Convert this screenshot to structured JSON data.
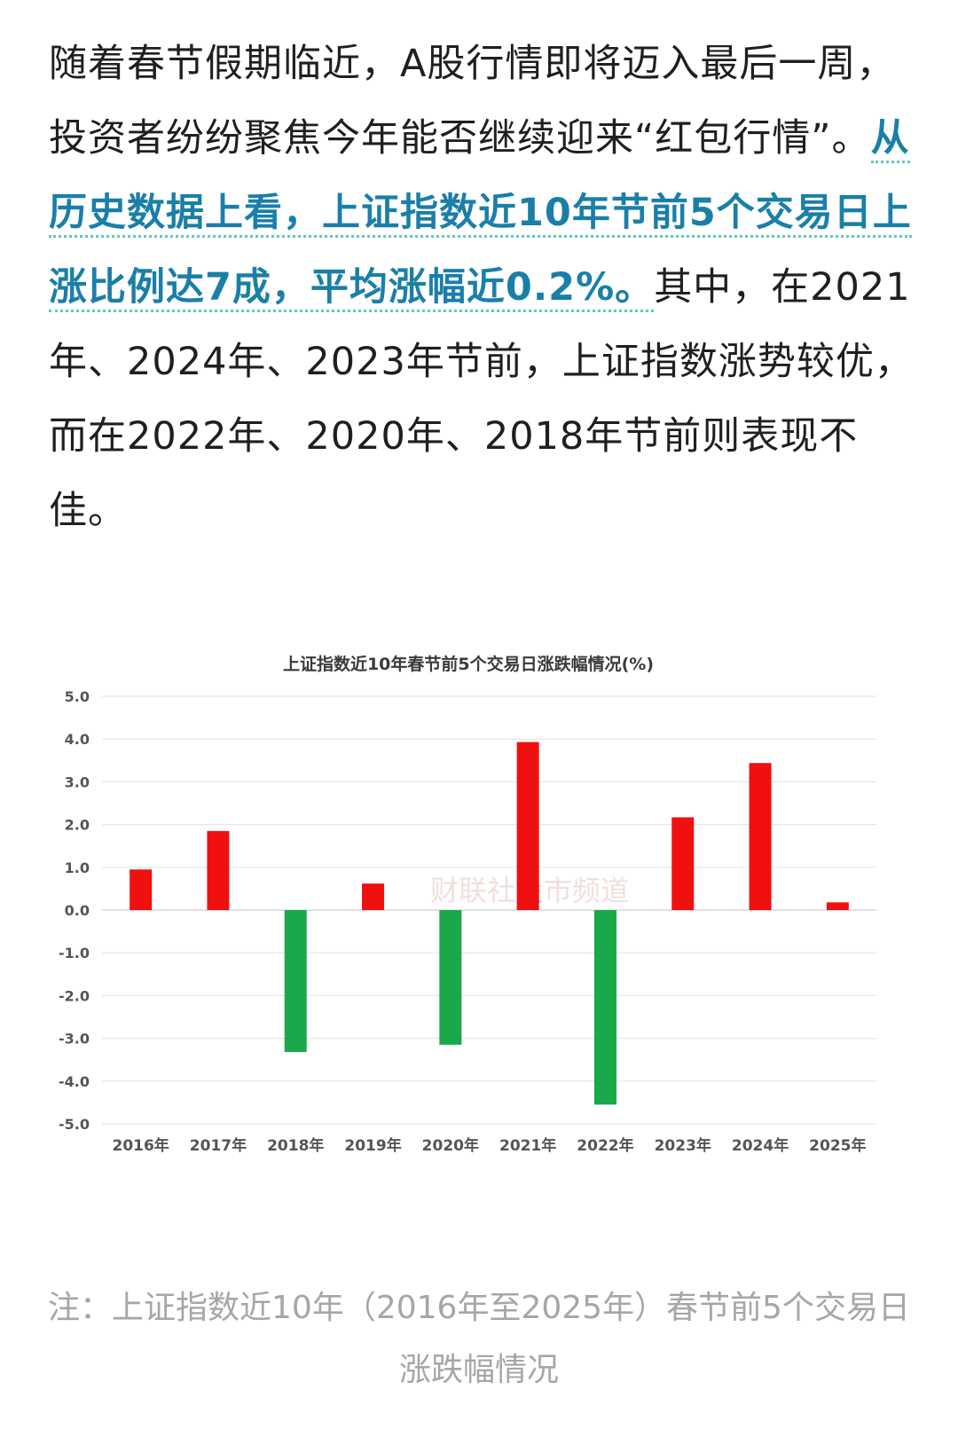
{
  "article": {
    "text_before": "随着春节假期临近，A股行情即将迈入最后一周，投资者纷纷聚焦今年能否继续迎来“红包行情”。",
    "highlight": "从历史数据上看，上证指数近10年节前5个交易日上涨比例达7成，平均涨幅近0.2%。",
    "text_after": "其中，在2021年、2024年、2023年节前，上证指数涨势较优，而在2022年、2020年、2018年节前则表现不佳。"
  },
  "watermark": "财联社股市频道",
  "caption": "注：上证指数近10年（2016年至2025年）春节前5个交易日涨跌幅情况",
  "colors": {
    "up": "#f01010",
    "down": "#1aa84a",
    "highlight_text": "#1a7fa8",
    "caption": "#a6a6a6"
  },
  "chart_data": {
    "type": "bar",
    "title": "上证指数近10年春节前5个交易日涨跌幅情况(%)",
    "xlabel": "",
    "ylabel": "",
    "categories": [
      "2016年",
      "2017年",
      "2018年",
      "2019年",
      "2020年",
      "2021年",
      "2022年",
      "2023年",
      "2024年",
      "2025年"
    ],
    "values": [
      0.95,
      1.85,
      -3.32,
      0.62,
      -3.15,
      3.93,
      -4.55,
      2.17,
      3.44,
      0.18
    ],
    "ylim": [
      -5.0,
      5.0
    ],
    "yticks": [
      "5.0",
      "4.0",
      "3.0",
      "2.0",
      "1.0",
      "0.0",
      "-1.0",
      "-2.0",
      "-3.0",
      "-4.0",
      "-5.0"
    ],
    "grid": true,
    "legend": "none"
  }
}
